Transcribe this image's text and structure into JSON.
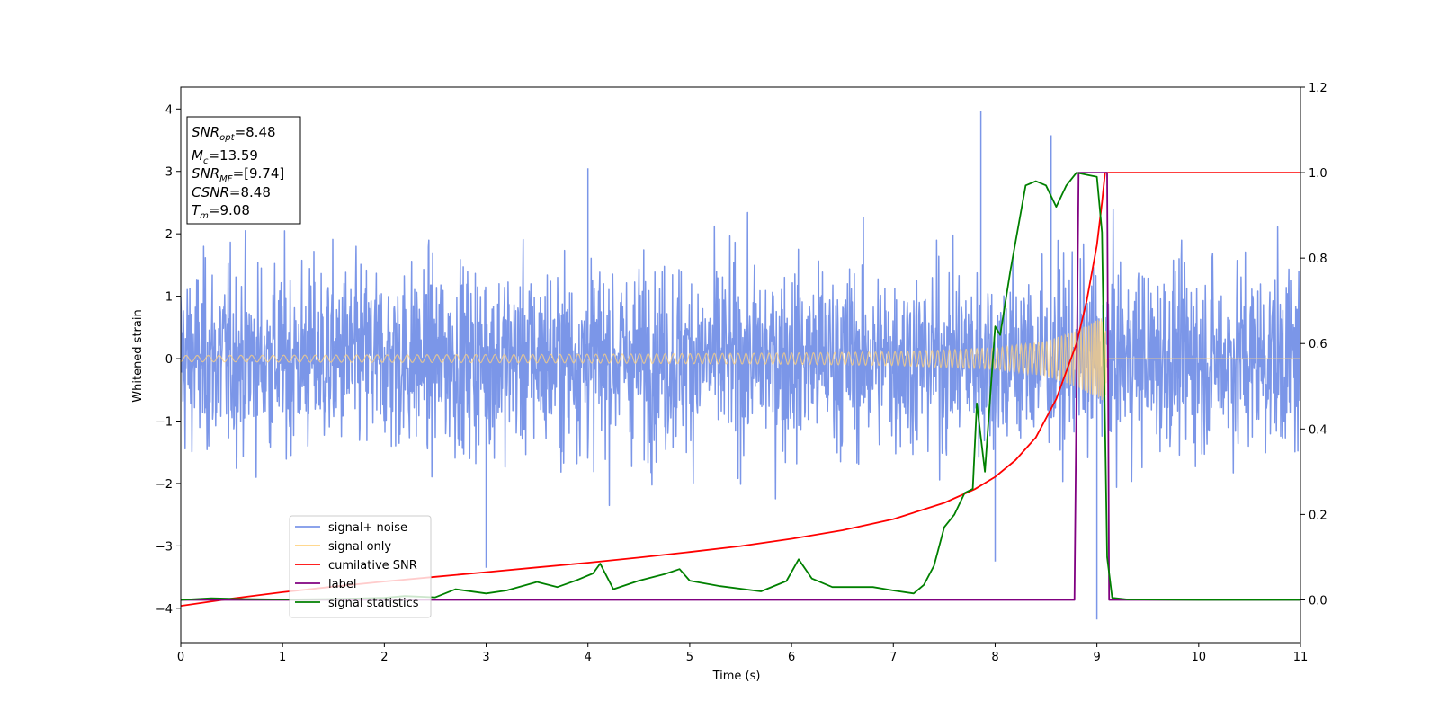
{
  "chart_data": {
    "type": "line",
    "xlabel": "Time (s)",
    "ylabel": "Whitened strain",
    "xlim": [
      0,
      11
    ],
    "ylim": [
      -4.55,
      4.35
    ],
    "y2lim": [
      -0.1,
      1.2
    ],
    "xticks": [
      "0",
      "1",
      "2",
      "3",
      "4",
      "5",
      "6",
      "7",
      "8",
      "9",
      "10",
      "11"
    ],
    "yticks": [
      "−4",
      "−3",
      "−2",
      "−1",
      "0",
      "1",
      "2",
      "3",
      "4"
    ],
    "y2ticks": [
      "0.0",
      "0.2",
      "0.4",
      "0.6",
      "0.8",
      "1.0",
      "1.2"
    ],
    "legend_position": "lower-left",
    "legend": [
      {
        "label": "signal+ noise",
        "color": "#7b96e8"
      },
      {
        "label": "signal only",
        "color": "#ffd27f"
      },
      {
        "label": "cumilative SNR",
        "color": "#ff0000"
      },
      {
        "label": "label",
        "color": "#800080"
      },
      {
        "label": "signal statistics",
        "color": "#008000"
      }
    ],
    "stats_box": [
      {
        "name": "SNR",
        "sub": "opt",
        "value": "=8.48"
      },
      {
        "name": "M",
        "sub": "c",
        "value": "=13.59"
      },
      {
        "name": "SNR",
        "sub": "MF",
        "value": "=[9.74]"
      },
      {
        "name": "CSNR",
        "sub": "",
        "value": "=8.48"
      },
      {
        "name": "T",
        "sub": "m",
        "value": "=9.08"
      }
    ],
    "series": [
      {
        "name": "signal+ noise",
        "axis": "left",
        "color": "#7b96e8",
        "description_range": [
          -4.2,
          4.0
        ],
        "spikes": [
          [
            7.86,
            3.97
          ],
          [
            9.0,
            -4.18
          ],
          [
            8.55,
            3.58
          ],
          [
            4.0,
            3.05
          ],
          [
            3.0,
            -3.35
          ],
          [
            8.0,
            -3.25
          ]
        ]
      },
      {
        "name": "signal only",
        "axis": "left",
        "color": "#ffd27f",
        "envelope": {
          "x": [
            0,
            2,
            4,
            6,
            7,
            8,
            8.5,
            8.8,
            9.0,
            9.08,
            9.1
          ],
          "amp": [
            0.05,
            0.06,
            0.07,
            0.09,
            0.11,
            0.17,
            0.28,
            0.45,
            0.62,
            0.7,
            0.0
          ]
        }
      },
      {
        "name": "cumilative SNR",
        "axis": "right",
        "color": "#ff0000",
        "x": [
          0,
          0.5,
          1,
          1.5,
          2,
          2.5,
          3,
          3.5,
          4,
          4.5,
          5,
          5.5,
          6,
          6.5,
          7,
          7.5,
          7.8,
          8.0,
          8.2,
          8.4,
          8.6,
          8.8,
          8.9,
          9.0,
          9.05,
          9.08,
          9.1,
          10,
          11
        ],
        "y": [
          -0.014,
          0.003,
          0.018,
          0.031,
          0.043,
          0.054,
          0.065,
          0.076,
          0.087,
          0.099,
          0.112,
          0.126,
          0.143,
          0.163,
          0.189,
          0.227,
          0.259,
          0.288,
          0.327,
          0.38,
          0.47,
          0.6,
          0.7,
          0.83,
          0.93,
          1.0,
          1.0,
          1.0,
          1.0
        ]
      },
      {
        "name": "label",
        "axis": "right",
        "color": "#800080",
        "x": [
          0,
          8.78,
          8.82,
          9.1,
          9.12,
          11
        ],
        "y": [
          0,
          0,
          1,
          1,
          0,
          0
        ]
      },
      {
        "name": "signal statistics",
        "axis": "right",
        "color": "#008000",
        "x": [
          0,
          0.3,
          0.6,
          1.0,
          1.5,
          2.0,
          2.2,
          2.5,
          2.7,
          3.0,
          3.2,
          3.5,
          3.7,
          3.9,
          4.05,
          4.12,
          4.25,
          4.5,
          4.75,
          4.9,
          5.0,
          5.3,
          5.7,
          5.95,
          6.07,
          6.2,
          6.4,
          6.8,
          7.0,
          7.2,
          7.3,
          7.4,
          7.5,
          7.6,
          7.7,
          7.78,
          7.82,
          7.9,
          8.0,
          8.05,
          8.15,
          8.3,
          8.4,
          8.5,
          8.6,
          8.7,
          8.8,
          8.9,
          9.0,
          9.05,
          9.1,
          9.15,
          9.3,
          10,
          11
        ],
        "y": [
          0.0,
          0.004,
          0.002,
          0.001,
          0.002,
          0.005,
          0.009,
          0.006,
          0.025,
          0.015,
          0.022,
          0.042,
          0.03,
          0.047,
          0.062,
          0.085,
          0.025,
          0.045,
          0.06,
          0.072,
          0.045,
          0.032,
          0.02,
          0.044,
          0.095,
          0.05,
          0.03,
          0.03,
          0.022,
          0.015,
          0.035,
          0.08,
          0.17,
          0.2,
          0.25,
          0.26,
          0.46,
          0.3,
          0.64,
          0.62,
          0.77,
          0.97,
          0.98,
          0.97,
          0.92,
          0.97,
          1.0,
          0.995,
          0.99,
          0.86,
          0.1,
          0.005,
          0.001,
          0.0,
          0.0
        ]
      }
    ]
  }
}
